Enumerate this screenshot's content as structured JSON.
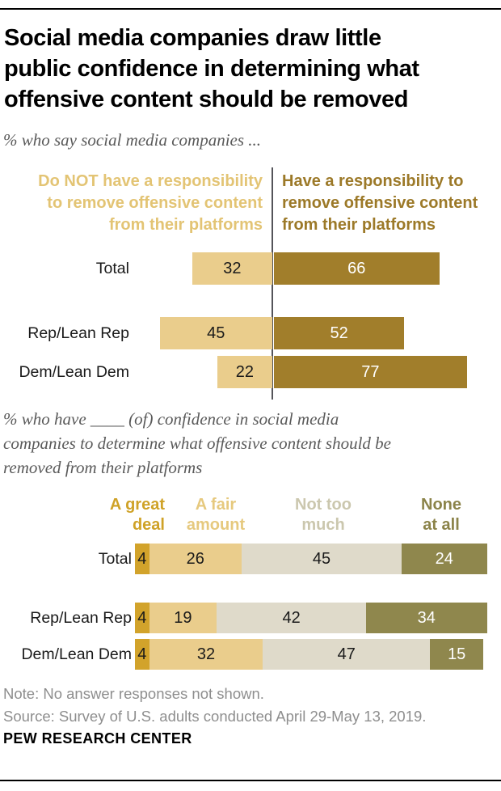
{
  "header": {
    "title": "Social media companies draw little\npublic confidence in determining what\noffensive content should be removed"
  },
  "notes": {
    "note": "Note: No answer responses not shown.",
    "source": "Source: Survey of U.S. adults conducted April 29-May 13, 2019."
  },
  "footer": {
    "label": "PEW RESEARCH CENTER"
  },
  "chart_data": [
    {
      "type": "bar",
      "variant": "diverging-horizontal",
      "title": "% who say social media companies ...",
      "categories": [
        "Total",
        "Rep/Lean Rep",
        "Dem/Lean Dem"
      ],
      "series": [
        {
          "name": "Do NOT have a responsibility to remove offensive content from their platforms",
          "header_label": "Do NOT have a responsibility\nto remove offensive content\nfrom their platforms",
          "values": [
            32,
            45,
            22
          ],
          "color": "#EACD8C",
          "text_color": "#1a1a1a",
          "label_color": "#E3C474"
        },
        {
          "name": "Have a responsibility to remove offensive content from their platforms",
          "header_label": "Have a responsibility to\nremove offensive content\nfrom their platforms",
          "values": [
            66,
            52,
            77
          ],
          "color": "#A17E2B",
          "text_color": "#ffffff",
          "label_color": "#9C7928"
        }
      ],
      "layout": {
        "orientation": "horizontal",
        "value_labels": "inside",
        "center_axis": true,
        "grid": false
      }
    },
    {
      "type": "bar",
      "variant": "stacked-horizontal",
      "title": "% who have ____ (of) confidence in social media\ncompanies to determine what offensive content should be\nremoved from their platforms",
      "categories": [
        "Total",
        "Rep/Lean Rep",
        "Dem/Lean Dem"
      ],
      "series": [
        {
          "name": "A great deal",
          "legend_label": "A great\ndeal",
          "values": [
            4,
            4,
            4
          ],
          "color": "#D2A32B",
          "text_color": "#1a1a1a",
          "label_color": "#CFA227"
        },
        {
          "name": "A fair amount",
          "legend_label": "A fair\namount",
          "values": [
            26,
            19,
            32
          ],
          "color": "#EACD8C",
          "text_color": "#1a1a1a",
          "label_color": "#E6C97E"
        },
        {
          "name": "Not too much",
          "legend_label": "Not too\nmuch",
          "values": [
            45,
            42,
            47
          ],
          "color": "#DFDACA",
          "text_color": "#1a1a1a",
          "label_color": "#CBC7AE"
        },
        {
          "name": "None at all",
          "legend_label": "None\nat all",
          "values": [
            24,
            34,
            15
          ],
          "color": "#8F874D",
          "text_color": "#ffffff",
          "label_color": "#8B8349"
        }
      ],
      "layout": {
        "orientation": "horizontal",
        "value_labels": "inside",
        "legend_position": "top",
        "grid": false
      }
    }
  ]
}
